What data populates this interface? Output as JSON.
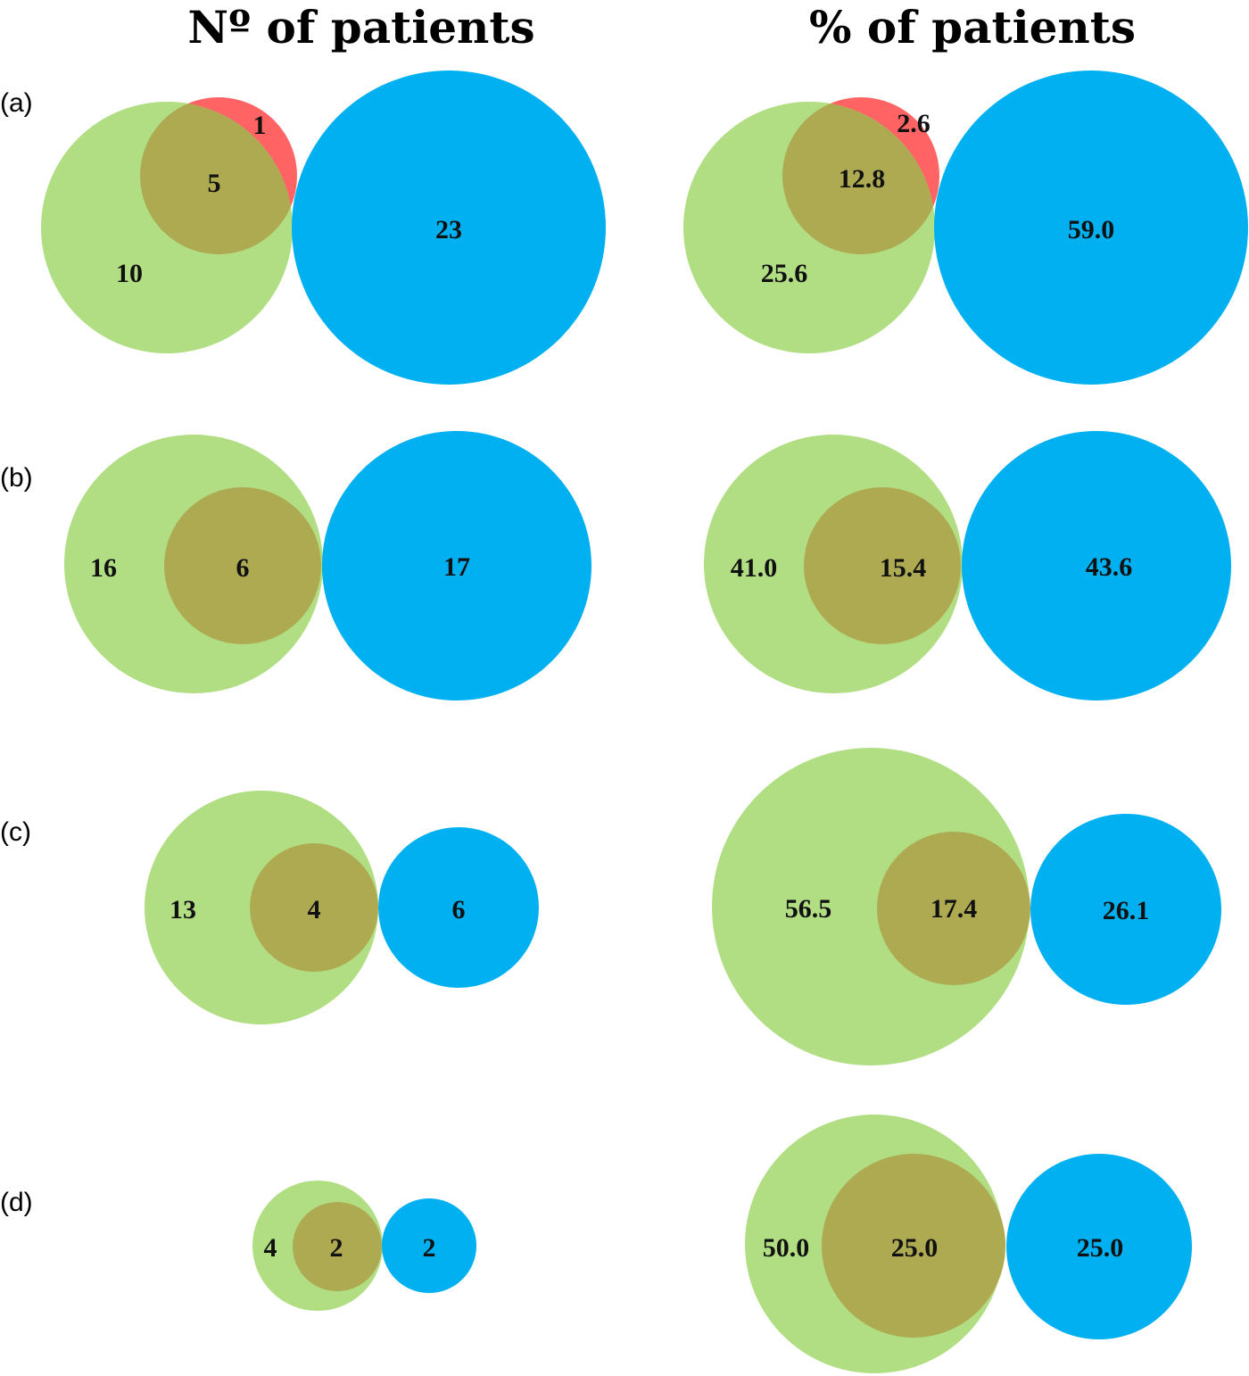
{
  "colors": {
    "green": "#b1de83",
    "overlap": "#aeaa52",
    "red": "#ff6363",
    "blue": "#00b0f0"
  },
  "columns": {
    "count_title": "Nº of patients",
    "percent_title": "% of patients"
  },
  "rows": [
    {
      "label": "(a)",
      "count": {
        "green_only": "10",
        "overlap": "5",
        "red_only": "1",
        "blue": "23"
      },
      "percent": {
        "green_only": "25.6",
        "overlap": "12.8",
        "red_only": "2.6",
        "blue": "59.0"
      }
    },
    {
      "label": "(b)",
      "count": {
        "green_only": "16",
        "overlap": "6",
        "blue": "17"
      },
      "percent": {
        "green_only": "41.0",
        "overlap": "15.4",
        "blue": "43.6"
      }
    },
    {
      "label": "(c)",
      "count": {
        "green_only": "13",
        "overlap": "4",
        "blue": "6"
      },
      "percent": {
        "green_only": "56.5",
        "overlap": "17.4",
        "blue": "26.1"
      }
    },
    {
      "label": "(d)",
      "count": {
        "green_only": "4",
        "overlap": "2",
        "blue": "2"
      },
      "percent": {
        "green_only": "50.0",
        "overlap": "25.0",
        "blue": "25.0"
      }
    }
  ]
}
